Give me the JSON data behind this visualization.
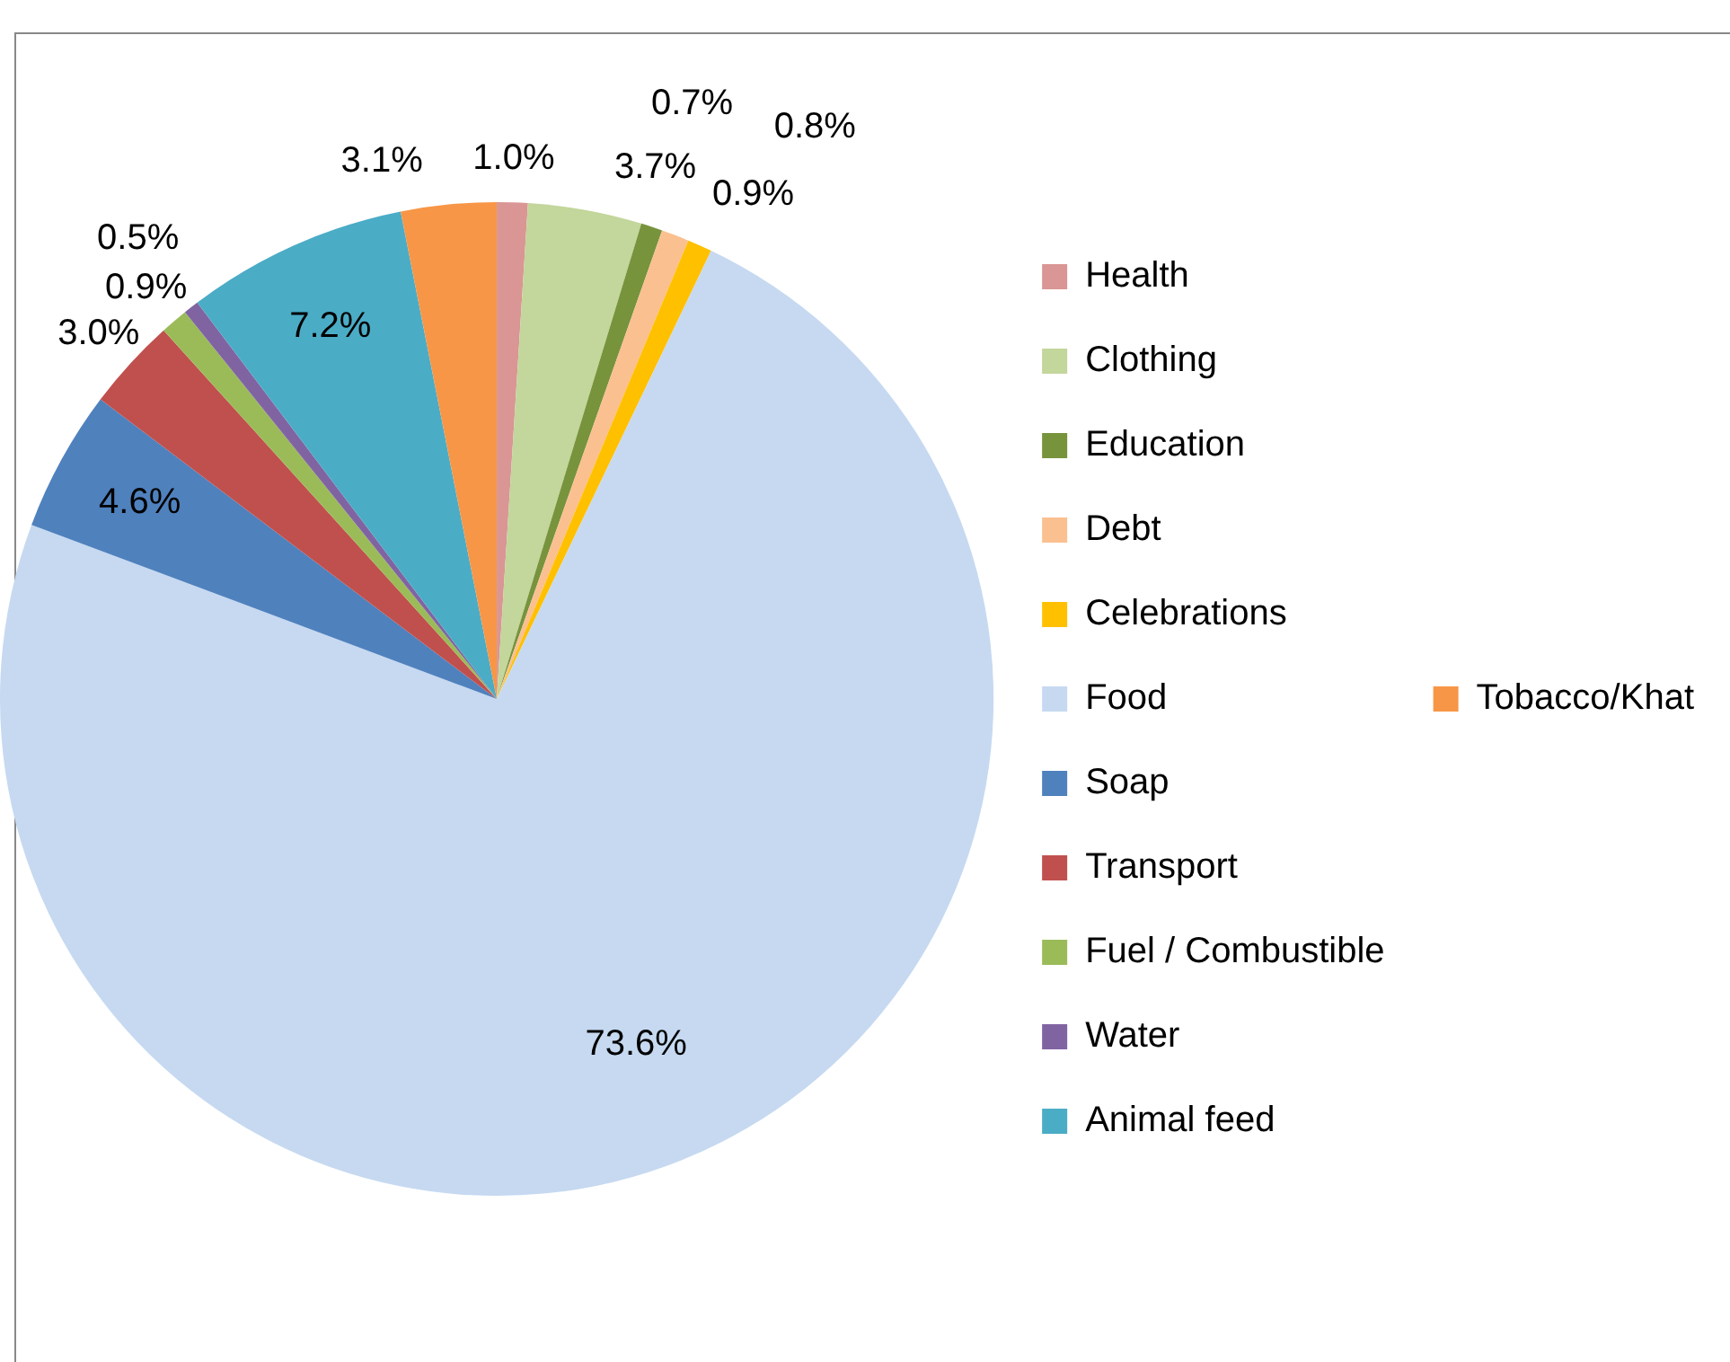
{
  "chart_data": {
    "type": "pie",
    "categories": [
      "Health",
      "Clothing",
      "Education",
      "Debt",
      "Celebrations",
      "Food",
      "Soap",
      "Transport",
      "Fuel / Combustible",
      "Water",
      "Animal feed",
      "Tobacco/Khat"
    ],
    "values": [
      1.0,
      3.7,
      0.7,
      0.9,
      0.8,
      73.6,
      4.6,
      3.0,
      0.9,
      0.5,
      7.2,
      3.1
    ],
    "colors": [
      "#d99694",
      "#c3d69b",
      "#77933c",
      "#fac090",
      "#ffc000",
      "#c6d9f1",
      "#4f81bd",
      "#c0504d",
      "#9bbb59",
      "#8064a2",
      "#4bacc6",
      "#f79646"
    ],
    "value_labels": [
      "1.0%",
      "3.7%",
      "0.7%",
      "0.9%",
      "0.8%",
      "73.6%",
      "4.6%",
      "3.0%",
      "0.9%",
      "0.5%",
      "7.2%",
      "3.1%"
    ],
    "legend": "right"
  }
}
